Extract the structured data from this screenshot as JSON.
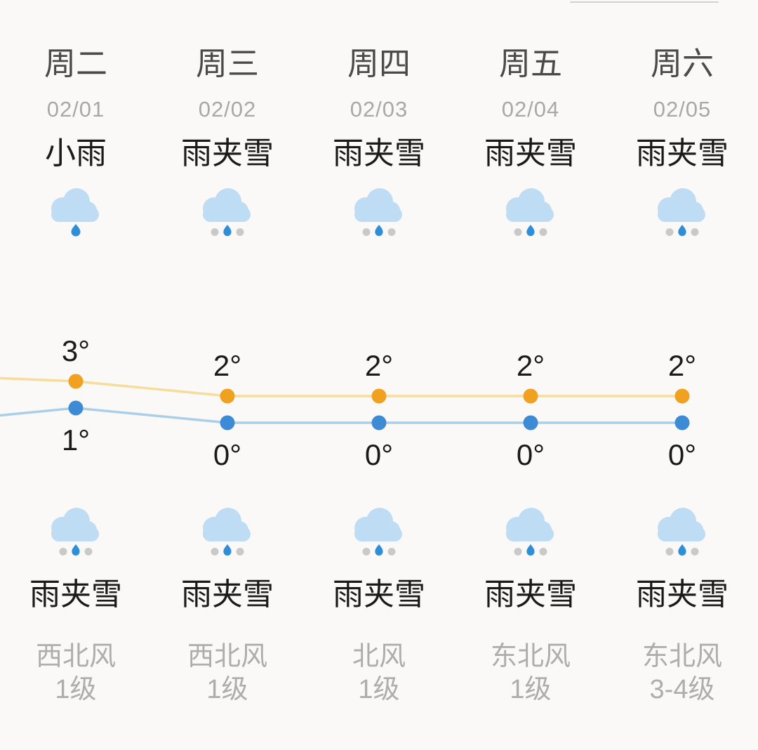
{
  "panel": {
    "description_label": "five-day-weather-forecast"
  },
  "days": [
    {
      "name": "周二",
      "date": "02/01",
      "day_condition": "小雨",
      "day_icon": "cloud-rain",
      "night_condition": "雨夹雪",
      "night_icon": "cloud-sleet",
      "wind_direction": "西北风",
      "wind_level": "1级"
    },
    {
      "name": "周三",
      "date": "02/02",
      "day_condition": "雨夹雪",
      "day_icon": "cloud-sleet",
      "night_condition": "雨夹雪",
      "night_icon": "cloud-sleet",
      "wind_direction": "西北风",
      "wind_level": "1级"
    },
    {
      "name": "周四",
      "date": "02/03",
      "day_condition": "雨夹雪",
      "day_icon": "cloud-sleet",
      "night_condition": "雨夹雪",
      "night_icon": "cloud-sleet",
      "wind_direction": "北风",
      "wind_level": "1级"
    },
    {
      "name": "周五",
      "date": "02/04",
      "day_condition": "雨夹雪",
      "day_icon": "cloud-sleet",
      "night_condition": "雨夹雪",
      "night_icon": "cloud-sleet",
      "wind_direction": "东北风",
      "wind_level": "1级"
    },
    {
      "name": "周六",
      "date": "02/05",
      "day_condition": "雨夹雪",
      "day_icon": "cloud-sleet",
      "night_condition": "雨夹雪",
      "night_icon": "cloud-sleet",
      "wind_direction": "东北风",
      "wind_level": "3-4级"
    }
  ],
  "chart_data": {
    "type": "line",
    "categories": [
      "周二",
      "周三",
      "周四",
      "周五",
      "周六"
    ],
    "dates": [
      "02/01",
      "02/02",
      "02/03",
      "02/04",
      "02/05"
    ],
    "unit": "°",
    "grid": false,
    "point_labels": true,
    "lines_enter_from_left_edge": true,
    "series": [
      {
        "name": "high",
        "values": [
          3,
          2,
          2,
          2,
          2
        ],
        "dot_color": "#efa11f",
        "line_color": "#f6dd9b"
      },
      {
        "name": "low",
        "values": [
          1,
          0,
          0,
          0,
          0
        ],
        "dot_color": "#3e8bd5",
        "line_color": "#accfe9"
      }
    ]
  },
  "colors": {
    "background": "#faf9f7",
    "cloud": "#bedcf4",
    "raindrop": "#2e8fd8",
    "snow-dot": "#c9c9c9",
    "high-line": "#f6dd9b",
    "high-dot": "#efa11f",
    "low-line": "#accfe9",
    "low-dot": "#3e8bd5",
    "day-name-text": "#4a4a4a",
    "date-text": "#a8a8a8",
    "condition-text": "#1a1a1a",
    "wind-text": "#adadad"
  }
}
